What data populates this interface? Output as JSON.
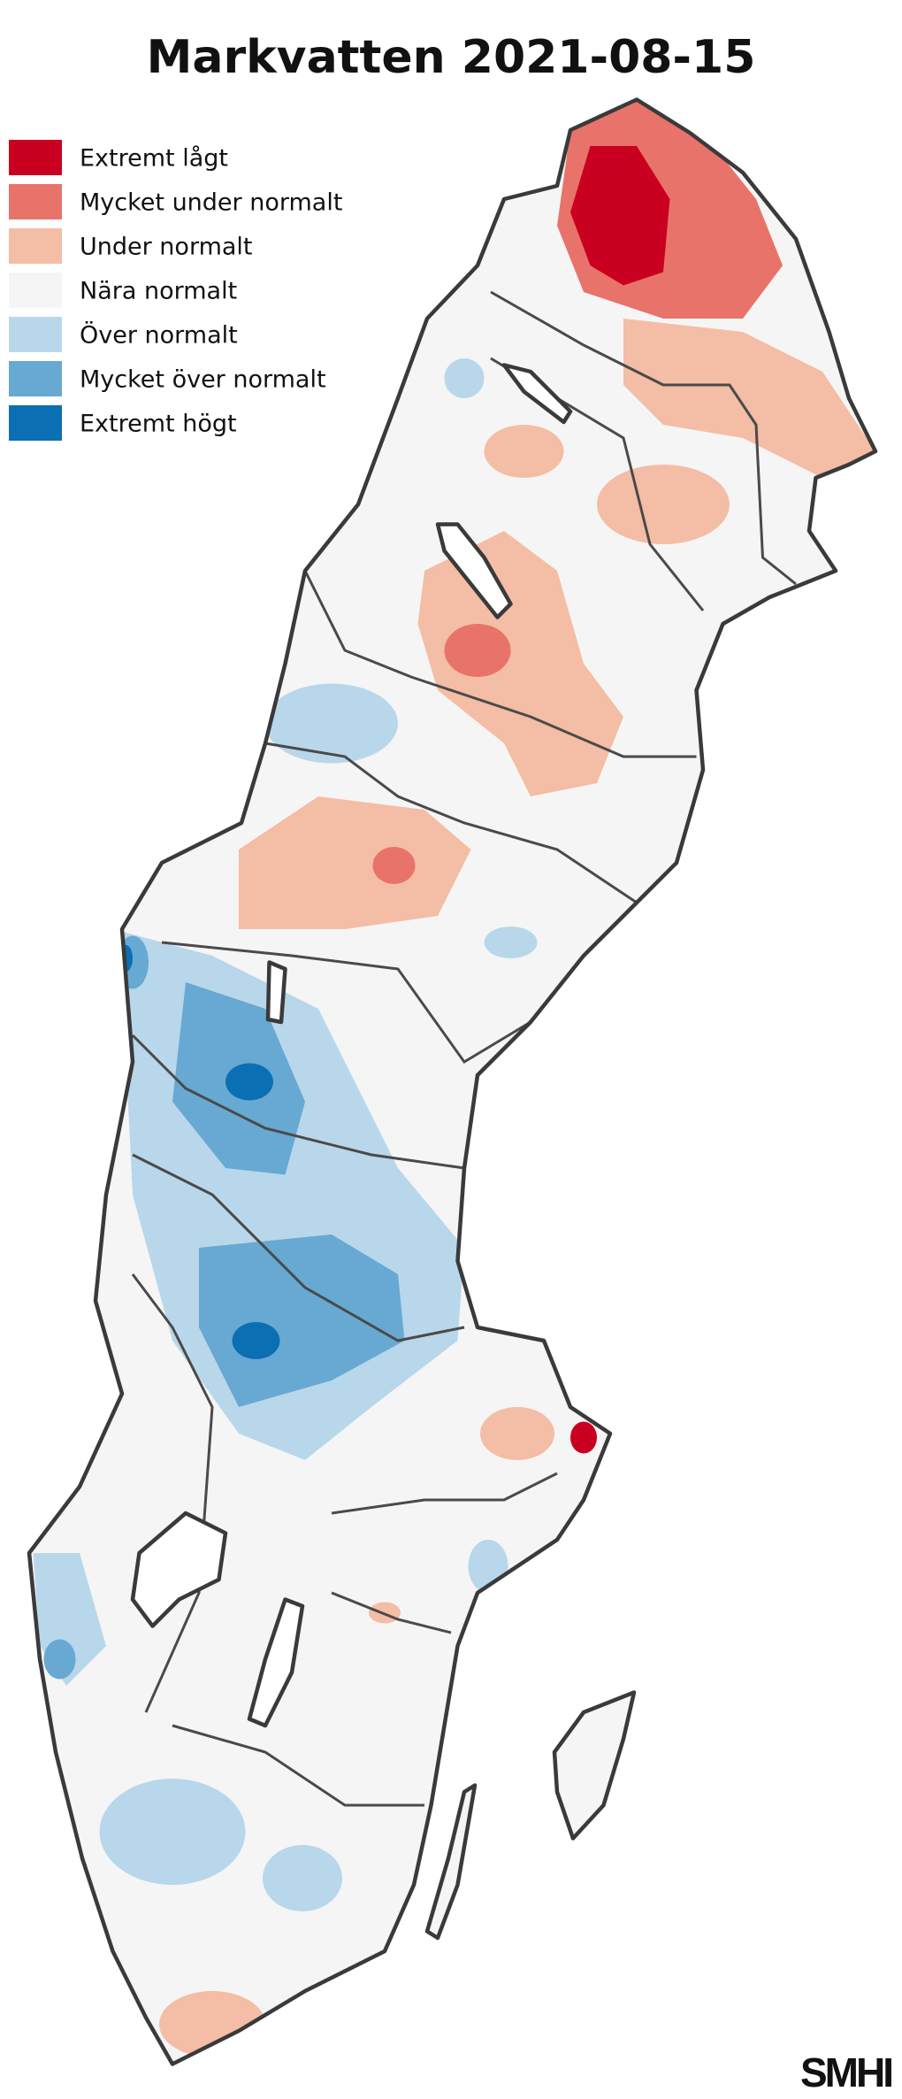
{
  "title": "Markvatten 2021-08-15",
  "legend": [
    {
      "label": "Extremt lågt",
      "color": "#ca0020"
    },
    {
      "label": "Mycket under normalt",
      "color": "#e8736a"
    },
    {
      "label": "Under normalt",
      "color": "#f4bda5"
    },
    {
      "label": "Nära normalt",
      "color": "#f5f5f5"
    },
    {
      "label": "Över normalt",
      "color": "#b9d7ea"
    },
    {
      "label": "Mycket över normalt",
      "color": "#67a9d2"
    },
    {
      "label": "Extremt högt",
      "color": "#0b6fb3"
    }
  ],
  "logo": "SMHI"
}
